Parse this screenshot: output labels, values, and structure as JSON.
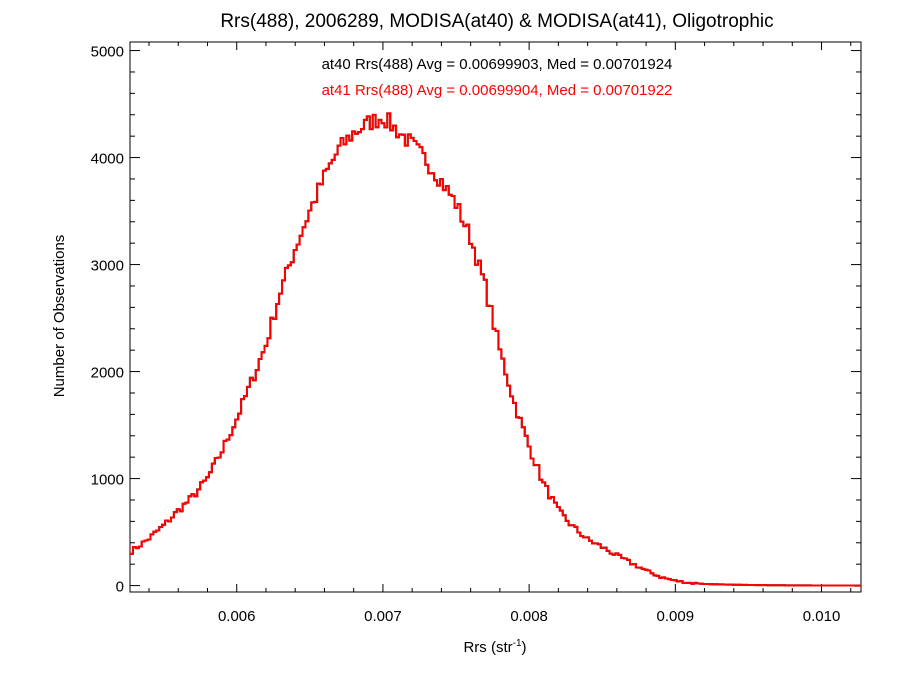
{
  "chart_data": {
    "type": "histogram",
    "title": "Rrs(488), 2006289, MODISA(at40) & MODISA(at41), Oligotrophic",
    "xlabel": {
      "main": "Rrs (str",
      "sup": "-1",
      "end": ")"
    },
    "ylabel": "Number of Observations",
    "xlim": [
      0.00527,
      0.01027
    ],
    "ylim": [
      -60,
      5080
    ],
    "x_ticks": [
      "0.006",
      "0.007",
      "0.008",
      "0.009",
      "0.010"
    ],
    "x_tick_values": [
      0.006,
      0.007,
      0.008,
      0.009,
      0.01
    ],
    "y_ticks": [
      "0",
      "1000",
      "2000",
      "3000",
      "4000",
      "5000"
    ],
    "y_tick_values": [
      0,
      1000,
      2000,
      3000,
      4000,
      5000
    ],
    "bin_width": 2e-05,
    "annotations": [
      {
        "text": "at40 Rrs(488) Avg = 0.00699903, Med = 0.00701924",
        "color": "#000000"
      },
      {
        "text": "at41 Rrs(488) Avg = 0.00699904, Med = 0.00701922",
        "color": "#ff0000"
      }
    ],
    "series": [
      {
        "name": "at40",
        "color": "#000000",
        "points": [
          [
            0.00527,
            310
          ],
          [
            0.0054,
            440
          ],
          [
            0.0055,
            560
          ],
          [
            0.0056,
            700
          ],
          [
            0.0057,
            830
          ],
          [
            0.0058,
            1000
          ],
          [
            0.0059,
            1260
          ],
          [
            0.006,
            1560
          ],
          [
            0.0061,
            1900
          ],
          [
            0.0062,
            2250
          ],
          [
            0.0063,
            2750
          ],
          [
            0.0064,
            3150
          ],
          [
            0.0065,
            3500
          ],
          [
            0.0066,
            3820
          ],
          [
            0.0067,
            4080
          ],
          [
            0.0068,
            4230
          ],
          [
            0.0069,
            4320
          ],
          [
            0.007,
            4380
          ],
          [
            0.0071,
            4250
          ],
          [
            0.0072,
            4120
          ],
          [
            0.0073,
            3970
          ],
          [
            0.0074,
            3780
          ],
          [
            0.0075,
            3570
          ],
          [
            0.0076,
            3250
          ],
          [
            0.0077,
            2800
          ],
          [
            0.0078,
            2200
          ],
          [
            0.0079,
            1700
          ],
          [
            0.008,
            1300
          ],
          [
            0.0081,
            950
          ],
          [
            0.0082,
            700
          ],
          [
            0.0083,
            550
          ],
          [
            0.0084,
            430
          ],
          [
            0.0085,
            360
          ],
          [
            0.0086,
            280
          ],
          [
            0.0087,
            210
          ],
          [
            0.0088,
            140
          ],
          [
            0.0089,
            80
          ],
          [
            0.009,
            45
          ],
          [
            0.0091,
            25
          ],
          [
            0.0092,
            15
          ],
          [
            0.0094,
            8
          ],
          [
            0.0096,
            4
          ],
          [
            0.0098,
            2
          ],
          [
            0.01,
            1
          ],
          [
            0.01027,
            0
          ]
        ]
      },
      {
        "name": "at41",
        "color": "#ff0000",
        "points": [
          [
            0.00527,
            310
          ],
          [
            0.0054,
            440
          ],
          [
            0.0055,
            560
          ],
          [
            0.0056,
            700
          ],
          [
            0.0057,
            830
          ],
          [
            0.0058,
            1000
          ],
          [
            0.0059,
            1260
          ],
          [
            0.006,
            1560
          ],
          [
            0.0061,
            1900
          ],
          [
            0.0062,
            2250
          ],
          [
            0.0063,
            2750
          ],
          [
            0.0064,
            3150
          ],
          [
            0.0065,
            3500
          ],
          [
            0.0066,
            3820
          ],
          [
            0.0067,
            4080
          ],
          [
            0.0068,
            4230
          ],
          [
            0.0069,
            4320
          ],
          [
            0.007,
            4380
          ],
          [
            0.0071,
            4250
          ],
          [
            0.0072,
            4120
          ],
          [
            0.0073,
            3970
          ],
          [
            0.0074,
            3780
          ],
          [
            0.0075,
            3570
          ],
          [
            0.0076,
            3250
          ],
          [
            0.0077,
            2800
          ],
          [
            0.0078,
            2200
          ],
          [
            0.0079,
            1700
          ],
          [
            0.008,
            1300
          ],
          [
            0.0081,
            950
          ],
          [
            0.0082,
            700
          ],
          [
            0.0083,
            550
          ],
          [
            0.0084,
            430
          ],
          [
            0.0085,
            360
          ],
          [
            0.0086,
            280
          ],
          [
            0.0087,
            210
          ],
          [
            0.0088,
            140
          ],
          [
            0.0089,
            80
          ],
          [
            0.009,
            45
          ],
          [
            0.0091,
            25
          ],
          [
            0.0092,
            15
          ],
          [
            0.0094,
            8
          ],
          [
            0.0096,
            4
          ],
          [
            0.0098,
            2
          ],
          [
            0.01,
            1
          ],
          [
            0.01027,
            0
          ]
        ]
      }
    ],
    "grid": false,
    "legend": "top-center"
  }
}
